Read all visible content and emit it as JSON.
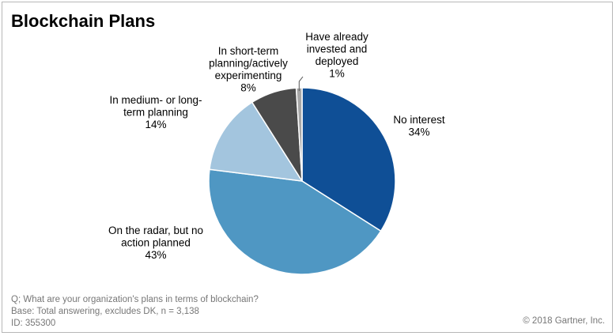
{
  "title": "Blockchain Plans",
  "chart_data": {
    "type": "pie",
    "title": "Blockchain Plans",
    "start_angle_deg": 0,
    "direction": "clockwise",
    "slices": [
      {
        "label_lines": [
          "No interest",
          "34%"
        ],
        "value": 34,
        "color": "#0f4f96"
      },
      {
        "label_lines": [
          "On the radar, but no",
          "action planned",
          "43%"
        ],
        "value": 43,
        "color": "#4f97c3"
      },
      {
        "label_lines": [
          "In medium- or long-",
          "term planning",
          "14%"
        ],
        "value": 14,
        "color": "#a3c5de"
      },
      {
        "label_lines": [
          "In short-term",
          "planning/actively",
          "experimenting",
          "8%"
        ],
        "value": 8,
        "color": "#4a4a4a"
      },
      {
        "label_lines": [
          "Have already",
          "invested and",
          "deployed",
          "1%"
        ],
        "value": 1,
        "color": "#a7a7a7"
      }
    ]
  },
  "footer": {
    "question": "Q; What are your organization's plans in terms of blockchain?",
    "base": "Base: Total  answering,  excludes  DK,  n = 3,138",
    "id": "ID: 355300"
  },
  "copyright": "© 2018 Gartner, Inc."
}
